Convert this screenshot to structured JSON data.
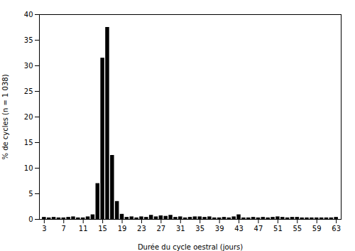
{
  "chart_data": {
    "type": "bar",
    "xlabel": "Durée du cycle oestral (jours)",
    "ylabel": "% de cycles (n = 1 038)",
    "x": [
      3,
      4,
      5,
      6,
      7,
      8,
      9,
      10,
      11,
      12,
      13,
      14,
      15,
      16,
      17,
      18,
      19,
      20,
      21,
      22,
      23,
      24,
      25,
      26,
      27,
      28,
      29,
      30,
      31,
      32,
      33,
      34,
      35,
      36,
      37,
      38,
      39,
      40,
      41,
      42,
      43,
      44,
      45,
      46,
      47,
      48,
      49,
      50,
      51,
      52,
      53,
      54,
      55,
      56,
      57,
      58,
      59,
      60,
      61,
      62,
      63
    ],
    "values": [
      0.4,
      0.3,
      0.4,
      0.3,
      0.3,
      0.4,
      0.5,
      0.3,
      0.3,
      0.5,
      0.9,
      7.0,
      31.5,
      37.5,
      12.5,
      3.5,
      1.0,
      0.4,
      0.5,
      0.3,
      0.5,
      0.4,
      0.8,
      0.5,
      0.7,
      0.6,
      0.8,
      0.4,
      0.5,
      0.3,
      0.4,
      0.5,
      0.5,
      0.4,
      0.5,
      0.3,
      0.3,
      0.4,
      0.3,
      0.5,
      0.9,
      0.3,
      0.3,
      0.4,
      0.3,
      0.4,
      0.3,
      0.4,
      0.5,
      0.4,
      0.3,
      0.4,
      0.4,
      0.3,
      0.3,
      0.3,
      0.3,
      0.3,
      0.3,
      0.3,
      0.4
    ],
    "color": "#000000",
    "xlim": [
      2,
      64
    ],
    "ylim": [
      0,
      40
    ],
    "xticks": [
      3,
      7,
      11,
      15,
      19,
      23,
      27,
      31,
      35,
      39,
      43,
      47,
      51,
      55,
      59,
      63
    ],
    "yticks": [
      0,
      5,
      10,
      15,
      20,
      25,
      30,
      35,
      40
    ],
    "grid": false
  }
}
